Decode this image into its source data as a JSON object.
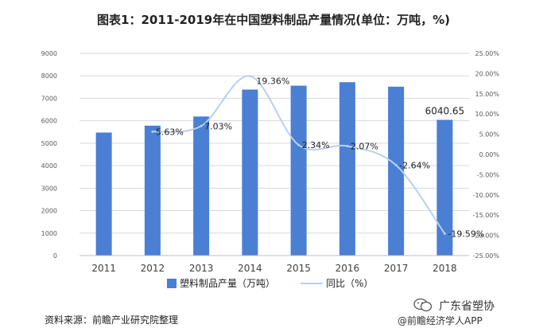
{
  "title": "图表1：2011-2019年在中国塑料制品产量情况(单位：万吨，%)",
  "source": "资料来源：前瞻产业研究院整理",
  "watermark": {
    "account_name": "广东省塑协",
    "app_name": "@前瞻经济学人APP"
  },
  "colors": {
    "bar": "#4a7fd4",
    "line": "#b9d0ea",
    "grid": "#d9d9d9",
    "axis_text": "#595959"
  },
  "chart_data": {
    "type": "bar",
    "categories": [
      "2011",
      "2012",
      "2013",
      "2014",
      "2015",
      "2016",
      "2017",
      "2018"
    ],
    "series": [
      {
        "name": "塑料制品产量（万吨）",
        "type": "bar",
        "axis": "left",
        "values": [
          5474,
          5782,
          6189,
          7388,
          7561,
          7717,
          7516,
          6040.65
        ]
      },
      {
        "name": "同比（%）",
        "type": "line",
        "axis": "right",
        "values": [
          null,
          5.63,
          7.03,
          19.36,
          2.34,
          2.07,
          -2.64,
          -19.59
        ]
      }
    ],
    "data_labels": [
      {
        "series": "塑料制品产量（万吨）",
        "index": 7,
        "text": "6040.65"
      },
      {
        "series": "同比（%）",
        "index": 1,
        "text": "5.63%"
      },
      {
        "series": "同比（%）",
        "index": 2,
        "text": "7.03%"
      },
      {
        "series": "同比（%）",
        "index": 3,
        "text": "19.36%"
      },
      {
        "series": "同比（%）",
        "index": 4,
        "text": "2.34%"
      },
      {
        "series": "同比（%）",
        "index": 5,
        "text": "2.07%"
      },
      {
        "series": "同比（%）",
        "index": 6,
        "text": "-2.64%"
      },
      {
        "series": "同比（%）",
        "index": 7,
        "text": "-19.59%"
      }
    ],
    "y_left": {
      "min": 0,
      "max": 9000,
      "step": 1000,
      "ticks": [
        "0",
        "1000",
        "2000",
        "3000",
        "4000",
        "5000",
        "6000",
        "7000",
        "8000",
        "9000"
      ]
    },
    "y_right": {
      "min": -25,
      "max": 25,
      "step": 5,
      "ticks": [
        "-25.00%",
        "-20.00%",
        "-15.00%",
        "-10.00%",
        "-5.00%",
        "0.00%",
        "5.00%",
        "10.00%",
        "15.00%",
        "20.00%",
        "25.00%"
      ]
    },
    "legend": {
      "position": "bottom",
      "items": [
        "塑料制品产量（万吨）",
        "同比（%）"
      ]
    },
    "grid": true
  }
}
